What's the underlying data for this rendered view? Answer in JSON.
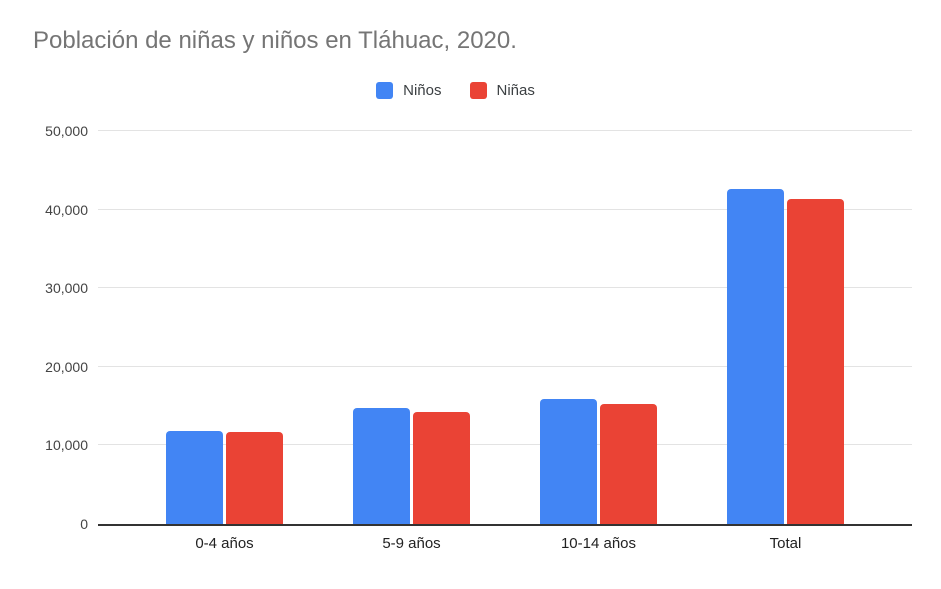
{
  "chart_data": {
    "type": "bar",
    "title": "Población de niñas y niños en Tláhuac, 2020.",
    "categories": [
      "0-4 años",
      "5-9 años",
      "10-14 años",
      "Total"
    ],
    "series": [
      {
        "name": "Niños",
        "color": "#4285F4",
        "values": [
          11900,
          14800,
          15900,
          42600
        ]
      },
      {
        "name": "Niñas",
        "color": "#EA4335",
        "values": [
          11700,
          14300,
          15300,
          41300
        ]
      }
    ],
    "xlabel": "",
    "ylabel": "",
    "ylim": [
      0,
      50000
    ],
    "yticks": [
      "0",
      "10,000",
      "20,000",
      "30,000",
      "40,000",
      "50,000"
    ],
    "grid": true,
    "legend_position": "top",
    "title_color": "#757575",
    "axis_line_color": "#333333",
    "gridline_color": "#e3e3e3"
  }
}
